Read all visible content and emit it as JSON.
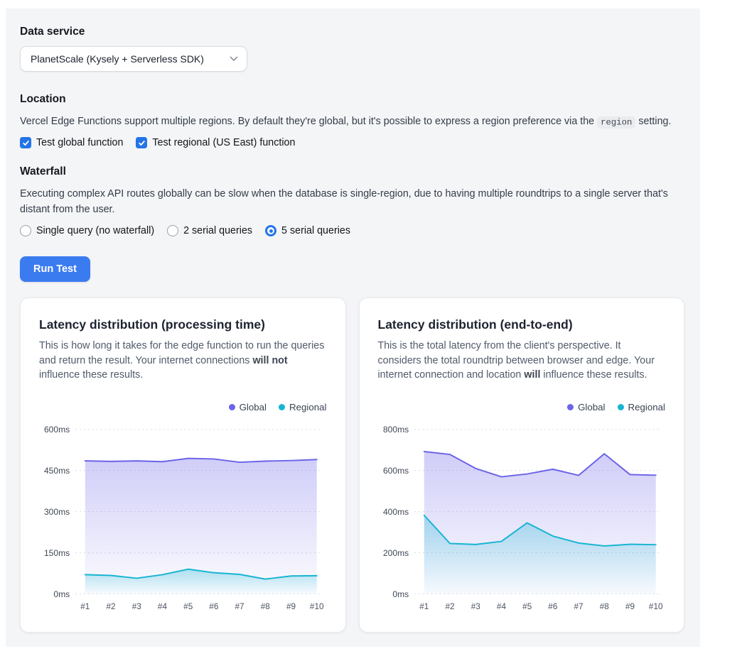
{
  "colors": {
    "accent_button": "#3b7bf0",
    "control_accent": "#2474e8",
    "global_series": "#6b63e8",
    "regional_series": "#16b5d2"
  },
  "data_service": {
    "label": "Data service",
    "selected": "PlanetScale (Kysely + Serverless SDK)"
  },
  "location": {
    "heading": "Location",
    "description": {
      "before": "Vercel Edge Functions support multiple regions. By default they're global, but it's possible to express a region preference via the ",
      "code": "region",
      "after": " setting."
    },
    "checkboxes": [
      {
        "label": "Test global function",
        "checked": true
      },
      {
        "label": "Test regional (US East) function",
        "checked": true
      }
    ]
  },
  "waterfall": {
    "heading": "Waterfall",
    "description": "Executing complex API routes globally can be slow when the database is single-region, due to having multiple roundtrips to a single server that's distant from the user.",
    "options": [
      {
        "label": "Single query (no waterfall)",
        "selected": false
      },
      {
        "label": "2 serial queries",
        "selected": false
      },
      {
        "label": "5 serial queries",
        "selected": true
      }
    ]
  },
  "run_button": {
    "label": "Run Test"
  },
  "chart_data": [
    {
      "type": "area",
      "title": "Latency distribution (processing time)",
      "description": [
        "This is how long it takes for the edge function to run the queries and return the result. Your internet connections ",
        "will not",
        " influence these results."
      ],
      "unit": "ms",
      "categories": [
        "#1",
        "#2",
        "#3",
        "#4",
        "#5",
        "#6",
        "#7",
        "#8",
        "#9",
        "#10"
      ],
      "yticks": [
        0,
        150,
        300,
        450,
        600
      ],
      "ylim": [
        0,
        600
      ],
      "grid": "dashed-horizontal",
      "legend_position": "top-right",
      "series": [
        {
          "name": "Global",
          "color": "#6b63e8",
          "values": [
            485,
            483,
            485,
            482,
            494,
            492,
            480,
            484,
            486,
            490
          ]
        },
        {
          "name": "Regional",
          "color": "#16b5d2",
          "values": [
            70,
            67,
            57,
            70,
            90,
            77,
            71,
            54,
            65,
            66
          ]
        }
      ]
    },
    {
      "type": "area",
      "title": "Latency distribution (end-to-end)",
      "description": [
        "This is the total latency from the client's perspective. It considers the total roundtrip between browser and edge. Your internet connection and location ",
        "will",
        " influence these results."
      ],
      "unit": "ms",
      "categories": [
        "#1",
        "#2",
        "#3",
        "#4",
        "#5",
        "#6",
        "#7",
        "#8",
        "#9",
        "#10"
      ],
      "yticks": [
        0,
        200,
        400,
        600,
        800
      ],
      "ylim": [
        0,
        800
      ],
      "grid": "dashed-horizontal",
      "legend_position": "top-right",
      "series": [
        {
          "name": "Global",
          "color": "#6b63e8",
          "values": [
            692,
            678,
            610,
            569,
            583,
            606,
            576,
            681,
            580,
            577
          ]
        },
        {
          "name": "Regional",
          "color": "#16b5d2",
          "values": [
            382,
            245,
            240,
            255,
            345,
            281,
            247,
            233,
            241,
            239
          ]
        }
      ]
    }
  ]
}
